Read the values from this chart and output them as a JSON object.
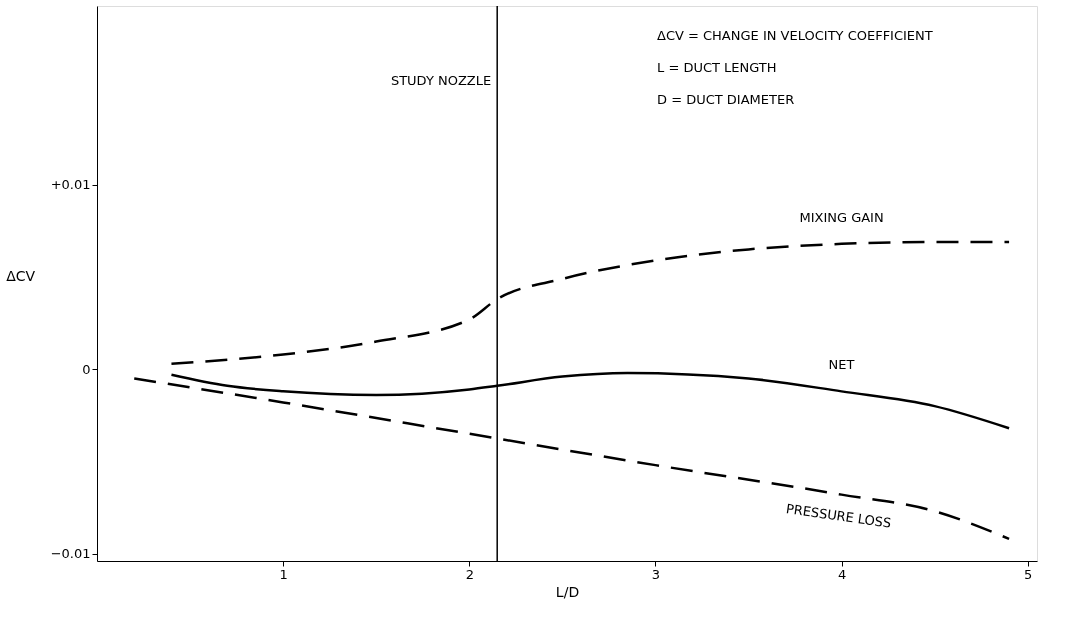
{
  "chart_data": {
    "type": "line",
    "xlabel": "L/D",
    "ylabel": "ΔCV",
    "xlim": [
      0,
      5.05
    ],
    "xticks": [
      1,
      2,
      3,
      4,
      5
    ],
    "ylim": [
      -0.0104,
      0.0197
    ],
    "yticks": [
      {
        "value": -0.01,
        "label": "−0.01"
      },
      {
        "value": 0,
        "label": "0"
      },
      {
        "value": 0.01,
        "label": "+0.01"
      }
    ],
    "grid": false,
    "legend": false,
    "marker": "none",
    "series": [
      {
        "name": "MIXING GAIN",
        "color": "#000000",
        "line_style": "dashed",
        "x": [
          0.4,
          1.0,
          1.5,
          2.0,
          2.15,
          2.5,
          3.0,
          3.5,
          4.0,
          4.5,
          4.9
        ],
        "values": [
          0.0003,
          0.0008,
          0.0015,
          0.0027,
          0.0038,
          0.0049,
          0.0059,
          0.0065,
          0.0068,
          0.0069,
          0.0069
        ]
      },
      {
        "name": "NET",
        "color": "#000000",
        "line_style": "solid",
        "x": [
          0.4,
          0.7,
          1.0,
          1.5,
          2.0,
          2.15,
          2.5,
          2.85,
          3.5,
          4.0,
          4.5,
          4.9
        ],
        "values": [
          -0.0003,
          -0.0009,
          -0.0012,
          -0.0014,
          -0.0011,
          -0.0009,
          -0.0004,
          -0.0002,
          -0.0005,
          -0.0012,
          -0.002,
          -0.0032
        ]
      },
      {
        "name": "PRESSURE LOSS",
        "color": "#000000",
        "line_style": "dashed",
        "x": [
          0.2,
          1.0,
          2.0,
          3.0,
          4.0,
          4.5,
          4.9
        ],
        "values": [
          -0.0005,
          -0.0018,
          -0.0035,
          -0.0052,
          -0.0068,
          -0.0077,
          -0.0092
        ]
      }
    ],
    "ref_lines": [
      {
        "axis": "x",
        "value": 2.15,
        "label": "STUDY NOZZLE",
        "color": "#000000",
        "line_style": "solid"
      }
    ],
    "annotations": [
      "ΔCV  =  CHANGE IN VELOCITY COEFFICIENT",
      "L  =  DUCT LENGTH",
      "D  =  DUCT DIAMETER"
    ]
  }
}
